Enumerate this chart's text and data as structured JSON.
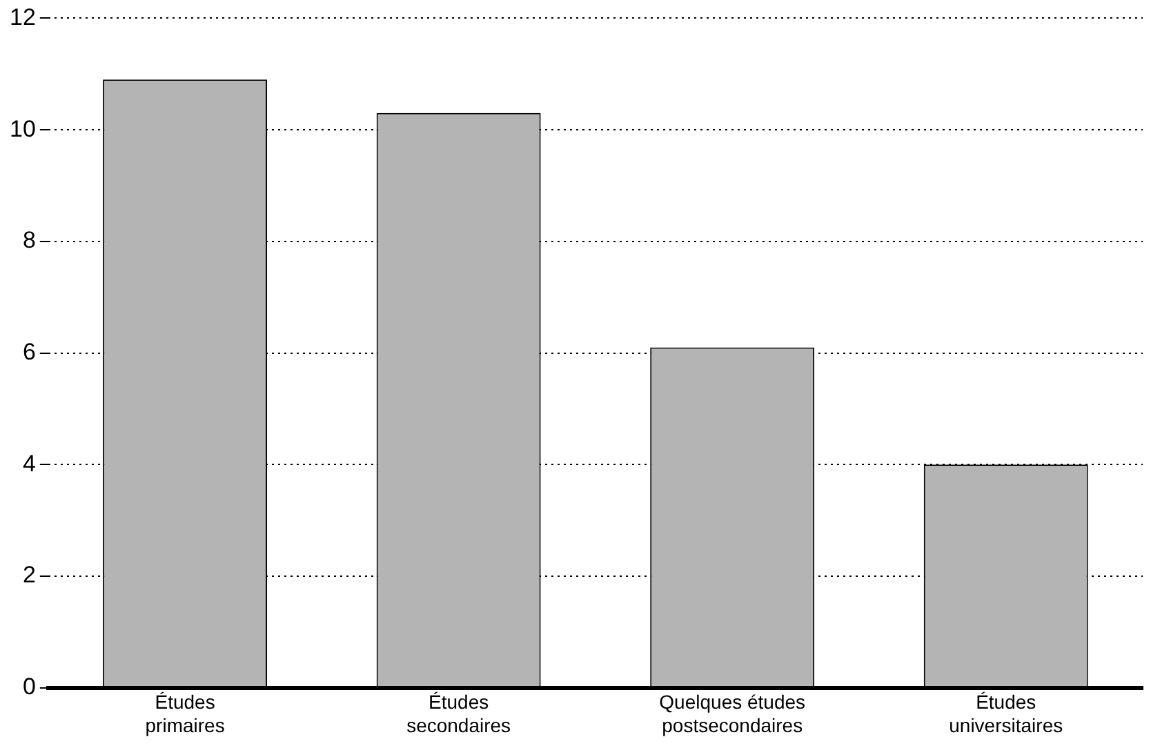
{
  "chart_data": {
    "type": "bar",
    "categories": [
      "Études primaires",
      "Études secondaires",
      "Quelques études postsecondaires",
      "Études universitaires"
    ],
    "values": [
      10.9,
      10.3,
      6.1,
      4.0
    ],
    "color": "#b4b4b4",
    "ylim": [
      0,
      12
    ],
    "yticks": [
      0,
      2,
      4,
      6,
      8,
      10,
      12
    ],
    "grid": "y",
    "legend": false
  }
}
